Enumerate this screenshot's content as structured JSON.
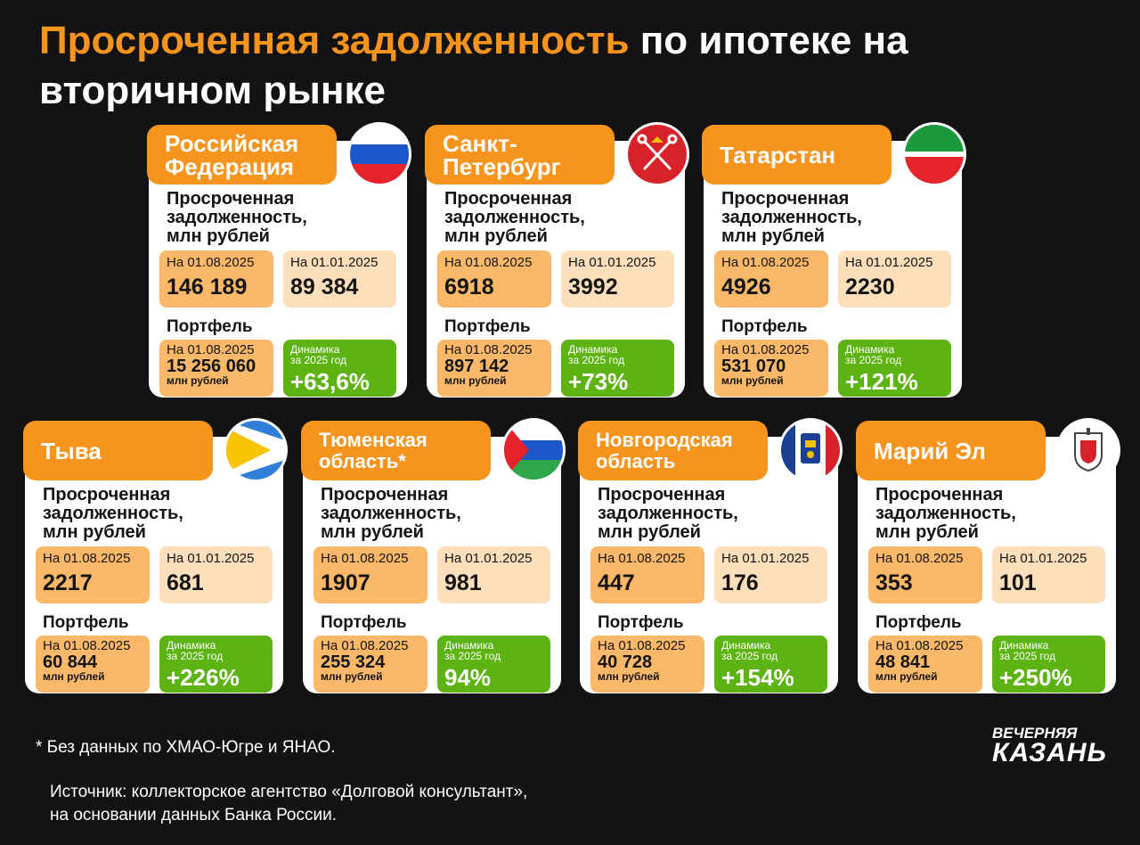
{
  "title": {
    "highlight": "Просроченная задолженность",
    "rest": " по ипотеке на вторичном рынке"
  },
  "common": {
    "debt_heading": "Просроченная\nзадолженность,\nмлн рублей",
    "date_current": "На 01.08.2025",
    "date_start": "На 01.01.2025",
    "portfolio_heading": "Портфель",
    "portfolio_unit": "млн рублей",
    "dynamics_label": "Динамика\nза 2025 год"
  },
  "regions": [
    {
      "name": "Российская\nФедерация",
      "flag_icon": "russia-flag-icon",
      "debt_current": "146 189",
      "debt_start": "89 384",
      "portfolio": "15 256 060",
      "dynamics": "+63,6%"
    },
    {
      "name": "Санкт-\nПетербург",
      "flag_icon": "saint-petersburg-flag-icon",
      "debt_current": "6918",
      "debt_start": "3992",
      "portfolio": "897 142",
      "dynamics": "+73%"
    },
    {
      "name": "Татарстан",
      "flag_icon": "tatarstan-flag-icon",
      "debt_current": "4926",
      "debt_start": "2230",
      "portfolio": "531 070",
      "dynamics": "+121%"
    },
    {
      "name": "Тыва",
      "flag_icon": "tuva-flag-icon",
      "debt_current": "2217",
      "debt_start": "681",
      "portfolio": "60 844",
      "dynamics": "+226%"
    },
    {
      "name": "Тюменская\nобласть*",
      "flag_icon": "tyumen-flag-icon",
      "debt_current": "1907",
      "debt_start": "981",
      "portfolio": "255 324",
      "dynamics": "94%"
    },
    {
      "name": "Новгородская\nобласть",
      "flag_icon": "novgorod-flag-icon",
      "debt_current": "447",
      "debt_start": "176",
      "portfolio": "40 728",
      "dynamics": "+154%"
    },
    {
      "name": "Марий Эл",
      "flag_icon": "mari-el-emblem-icon",
      "debt_current": "353",
      "debt_start": "101",
      "portfolio": "48 841",
      "dynamics": "+250%"
    }
  ],
  "footnote": "* Без данных по ХМАО-Югре и ЯНАО.",
  "source": "Источник:  коллекторское агентство «Долговой консультант»,\nна основании данных Банка России.",
  "logo": {
    "line1": "ВЕЧЕРНЯЯ",
    "line2": "КАЗАНЬ"
  },
  "colors": {
    "accent": "#f7941d",
    "green": "#5cb312",
    "background": "#131313"
  }
}
